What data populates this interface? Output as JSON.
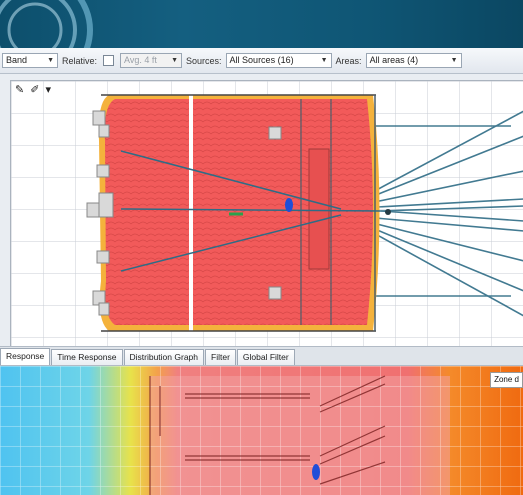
{
  "toolbar": {
    "band_value": "Band",
    "relative_label": "Relative:",
    "relative_value": "Avg. 4 ft",
    "sources_label": "Sources:",
    "sources_value": "All Sources (16)",
    "areas_label": "Areas:",
    "areas_value": "All areas (4)"
  },
  "plan_tools": {
    "icons": [
      "pencil-icon",
      "pen-icon",
      "pointer-icon"
    ]
  },
  "tabs": [
    {
      "label": "Response",
      "active": true
    },
    {
      "label": "Time Response",
      "active": false
    },
    {
      "label": "Distribution Graph",
      "active": false
    },
    {
      "label": "Filter",
      "active": false
    },
    {
      "label": "Global Filter",
      "active": false
    }
  ],
  "heatmap": {
    "zone_label": "Zone d",
    "colors": {
      "cool": "#4fc3f0",
      "mid": "#e8e24a",
      "warm": "#f08080",
      "hot": "#f06a10"
    }
  },
  "colors": {
    "title_bg": "#0f5675",
    "coverage_fill": "#f25a5a",
    "coverage_edge": "#f4b23c",
    "ray_lines": "#2e6c86"
  }
}
